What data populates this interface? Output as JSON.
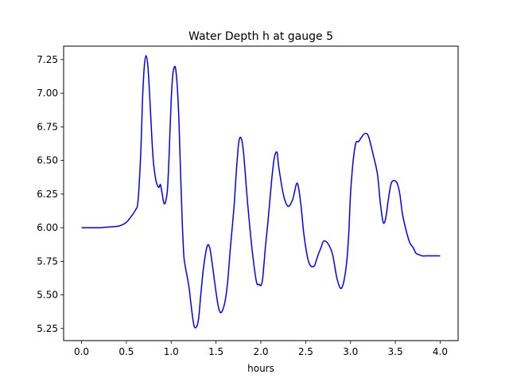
{
  "chart_data": {
    "type": "line",
    "title": "Water Depth h at gauge 5",
    "xlabel": "hours",
    "ylabel": "",
    "xlim": [
      -0.2,
      4.2
    ],
    "ylim": [
      5.16,
      7.35
    ],
    "xticks": [
      0.0,
      0.5,
      1.0,
      1.5,
      2.0,
      2.5,
      3.0,
      3.5,
      4.0
    ],
    "xtick_labels": [
      "0.0",
      "0.5",
      "1.0",
      "1.5",
      "2.0",
      "2.5",
      "3.0",
      "3.5",
      "4.0"
    ],
    "yticks": [
      5.25,
      5.5,
      5.75,
      6.0,
      6.25,
      6.5,
      6.75,
      7.0,
      7.25
    ],
    "ytick_labels": [
      "5.25",
      "5.50",
      "5.75",
      "6.00",
      "6.25",
      "6.50",
      "6.75",
      "7.00",
      "7.25"
    ],
    "grid": false,
    "series": [
      {
        "color": "#0000ff",
        "x": [
          0.0,
          0.2,
          0.3,
          0.4,
          0.45,
          0.5,
          0.55,
          0.6,
          0.63,
          0.66,
          0.68,
          0.7,
          0.72,
          0.74,
          0.76,
          0.78,
          0.8,
          0.83,
          0.86,
          0.88,
          0.9,
          0.92,
          0.94,
          0.96,
          0.98,
          1.0,
          1.02,
          1.05,
          1.08,
          1.1,
          1.12,
          1.14,
          1.16,
          1.18,
          1.2,
          1.23,
          1.26,
          1.3,
          1.33,
          1.36,
          1.4,
          1.43,
          1.46,
          1.5,
          1.53,
          1.56,
          1.6,
          1.63,
          1.66,
          1.7,
          1.73,
          1.76,
          1.8,
          1.85,
          1.9,
          1.95,
          1.98,
          2.0,
          2.02,
          2.05,
          2.08,
          2.12,
          2.15,
          2.18,
          2.2,
          2.25,
          2.3,
          2.35,
          2.38,
          2.4,
          2.42,
          2.45,
          2.48,
          2.52,
          2.55,
          2.58,
          2.6,
          2.62,
          2.64,
          2.67,
          2.7,
          2.75,
          2.8,
          2.85,
          2.9,
          2.95,
          2.98,
          3.0,
          3.03,
          3.06,
          3.09,
          3.12,
          3.16,
          3.2,
          3.25,
          3.3,
          3.33,
          3.36,
          3.38,
          3.4,
          3.42,
          3.45,
          3.48,
          3.52,
          3.55,
          3.58,
          3.62,
          3.66,
          3.7,
          3.73,
          3.76,
          3.8,
          3.84,
          3.88,
          3.92,
          3.96,
          4.0
        ],
        "y": [
          6.0,
          6.0,
          6.005,
          6.01,
          6.02,
          6.04,
          6.08,
          6.13,
          6.2,
          6.55,
          6.95,
          7.2,
          7.28,
          7.2,
          6.98,
          6.72,
          6.5,
          6.35,
          6.3,
          6.32,
          6.25,
          6.18,
          6.2,
          6.3,
          6.6,
          6.95,
          7.15,
          7.18,
          6.9,
          6.5,
          6.1,
          5.8,
          5.7,
          5.63,
          5.55,
          5.38,
          5.26,
          5.3,
          5.5,
          5.7,
          5.86,
          5.85,
          5.72,
          5.52,
          5.4,
          5.37,
          5.45,
          5.6,
          5.85,
          6.15,
          6.45,
          6.66,
          6.6,
          6.2,
          5.85,
          5.6,
          5.58,
          5.57,
          5.62,
          5.85,
          6.05,
          6.35,
          6.52,
          6.56,
          6.45,
          6.25,
          6.16,
          6.2,
          6.28,
          6.33,
          6.3,
          6.15,
          5.95,
          5.78,
          5.72,
          5.71,
          5.72,
          5.76,
          5.8,
          5.85,
          5.9,
          5.88,
          5.8,
          5.62,
          5.55,
          5.7,
          5.95,
          6.25,
          6.5,
          6.63,
          6.64,
          6.67,
          6.7,
          6.68,
          6.55,
          6.4,
          6.2,
          6.05,
          6.04,
          6.1,
          6.2,
          6.32,
          6.35,
          6.33,
          6.25,
          6.1,
          5.98,
          5.89,
          5.85,
          5.81,
          5.8,
          5.79,
          5.79,
          5.79,
          5.79,
          5.79,
          5.79
        ]
      }
    ]
  }
}
